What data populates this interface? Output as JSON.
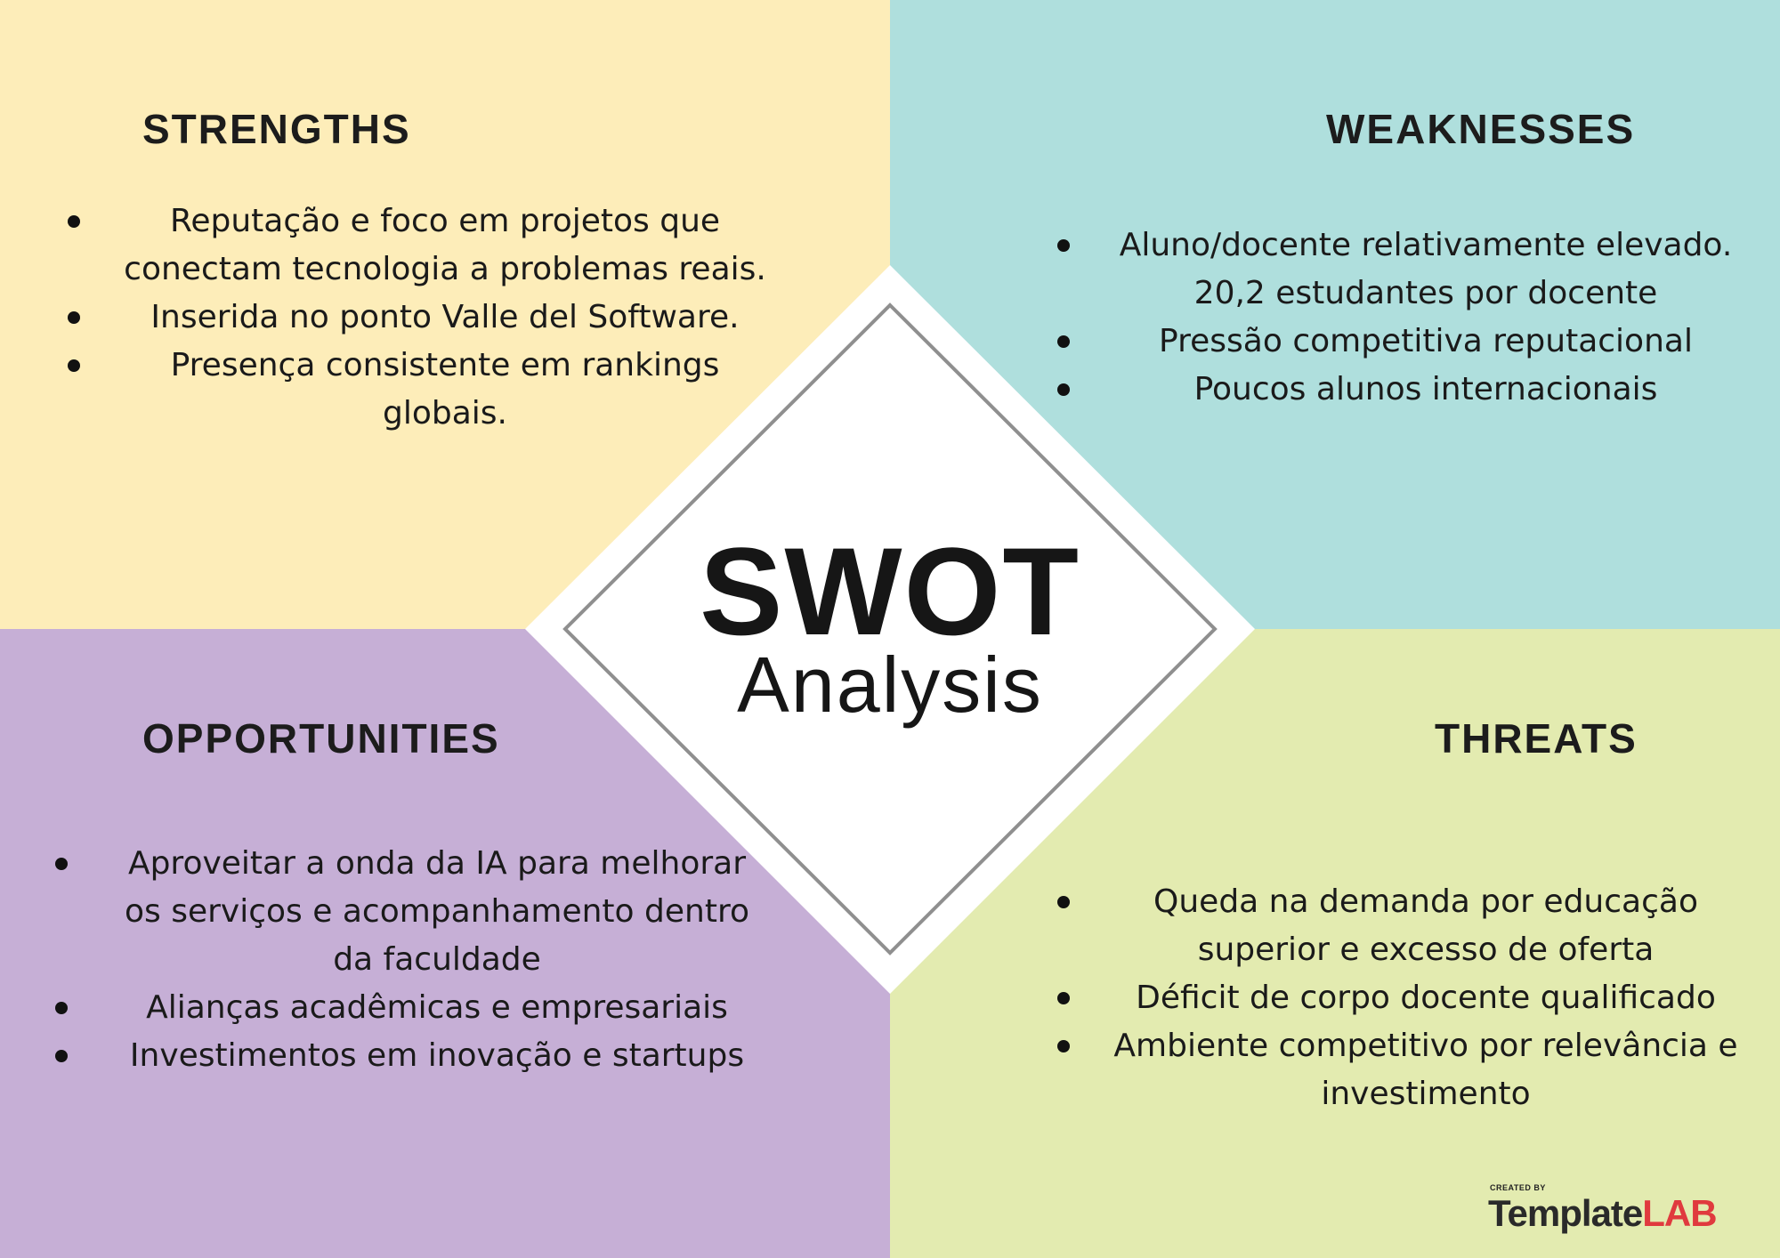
{
  "colors": {
    "strengths_bg": "#fdedb9",
    "weaknesses_bg": "#afdfdd",
    "opportunities_bg": "#c6afd6",
    "threats_bg": "#e3ebb0",
    "diamond_fill": "#ffffff",
    "diamond_border": "#8f8f8f",
    "logo_accent": "#e03a3e"
  },
  "center": {
    "title": "SWOT",
    "subtitle": "Analysis"
  },
  "strengths": {
    "heading": "STRENGTHS",
    "items": [
      "Reputação e foco em projetos que conectam tecnologia a problemas reais.",
      "Inserida no ponto Valle del Software.",
      "Presença consistente em rankings globais."
    ]
  },
  "weaknesses": {
    "heading": "WEAKNESSES",
    "items": [
      "Aluno/docente relativamente elevado. 20,2 estudantes por docente",
      "Pressão competitiva reputacional",
      "Poucos alunos internacionais"
    ]
  },
  "opportunities": {
    "heading": "OPPORTUNITIES",
    "items": [
      "Aproveitar a onda da IA para melhorar os serviços e acompanhamento dentro da faculdade",
      "Alianças acadêmicas e empresariais",
      "Investimentos em inovação e startups"
    ]
  },
  "threats": {
    "heading": "THREATS",
    "items": [
      "Queda na demanda por educação superior e excesso de oferta",
      "Déficit de corpo docente qualificado",
      "Ambiente competitivo por relevância e investimento"
    ]
  },
  "logo": {
    "created_by": "CREATED BY",
    "brand_main": "Template",
    "brand_accent": "LAB"
  }
}
